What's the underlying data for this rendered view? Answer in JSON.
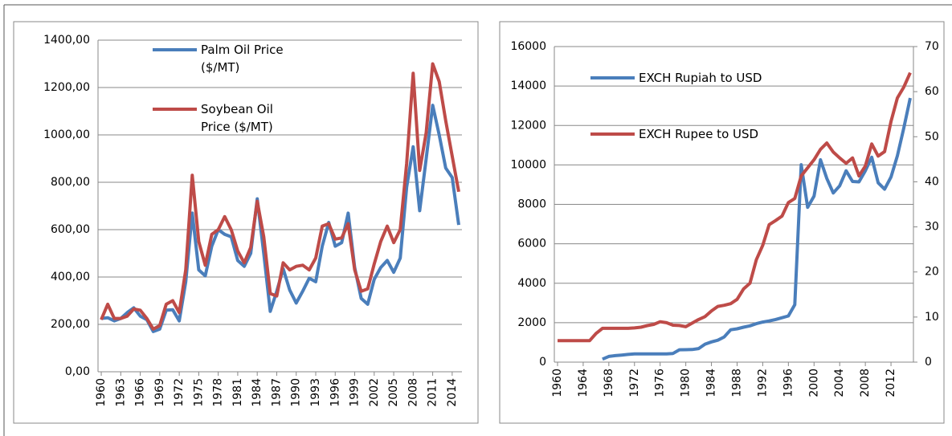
{
  "chart_data": [
    {
      "type": "line",
      "x": [
        1960,
        1961,
        1962,
        1963,
        1964,
        1965,
        1966,
        1967,
        1968,
        1969,
        1970,
        1971,
        1972,
        1973,
        1974,
        1975,
        1976,
        1977,
        1978,
        1979,
        1980,
        1981,
        1982,
        1983,
        1984,
        1985,
        1986,
        1987,
        1988,
        1989,
        1990,
        1991,
        1992,
        1993,
        1994,
        1995,
        1996,
        1997,
        1998,
        1999,
        2000,
        2001,
        2002,
        2003,
        2004,
        2005,
        2006,
        2007,
        2008,
        2009,
        2010,
        2011,
        2012,
        2013,
        2014,
        2015
      ],
      "xlim": [
        1959.5,
        2015.5
      ],
      "xticks": [
        1960,
        1963,
        1966,
        1969,
        1972,
        1975,
        1978,
        1981,
        1984,
        1987,
        1990,
        1993,
        1996,
        1999,
        2002,
        2005,
        2008,
        2011,
        2014
      ],
      "ylim": [
        0,
        1400
      ],
      "yticks": [
        {
          "value": 0,
          "label": "0,00"
        },
        {
          "value": 200,
          "label": "200,00"
        },
        {
          "value": 400,
          "label": "400,00"
        },
        {
          "value": 600,
          "label": "600,00"
        },
        {
          "value": 800,
          "label": "800,00"
        },
        {
          "value": 1000,
          "label": "1000,00"
        },
        {
          "value": 1200,
          "label": "1200,00"
        },
        {
          "value": 1400,
          "label": "1400,00"
        }
      ],
      "grid": true,
      "legend": "top-left",
      "series": [
        {
          "name": "Palm Oil Price ($/MT)",
          "color": "#4a7ebb",
          "values": [
            225,
            228,
            215,
            225,
            250,
            270,
            235,
            220,
            170,
            180,
            260,
            262,
            215,
            380,
            670,
            430,
            405,
            530,
            600,
            580,
            570,
            470,
            445,
            500,
            730,
            500,
            255,
            340,
            435,
            345,
            290,
            340,
            395,
            380,
            530,
            630,
            530,
            545,
            670,
            440,
            310,
            285,
            390,
            440,
            470,
            420,
            480,
            780,
            950,
            680,
            900,
            1125,
            1000,
            860,
            820,
            620
          ]
        },
        {
          "name": "Soybean Oil Price ($/MT)",
          "color": "#be4b48",
          "values": [
            220,
            285,
            225,
            225,
            235,
            265,
            260,
            225,
            180,
            195,
            285,
            300,
            250,
            430,
            830,
            550,
            450,
            580,
            600,
            655,
            600,
            510,
            460,
            525,
            720,
            570,
            330,
            320,
            460,
            430,
            445,
            450,
            430,
            480,
            615,
            625,
            560,
            565,
            625,
            430,
            340,
            350,
            455,
            550,
            615,
            545,
            600,
            880,
            1260,
            850,
            1010,
            1300,
            1225,
            1060,
            910,
            760
          ]
        }
      ]
    },
    {
      "type": "line",
      "x": [
        1960,
        1961,
        1962,
        1963,
        1964,
        1965,
        1966,
        1967,
        1968,
        1969,
        1970,
        1971,
        1972,
        1973,
        1974,
        1975,
        1976,
        1977,
        1978,
        1979,
        1980,
        1981,
        1982,
        1983,
        1984,
        1985,
        1986,
        1987,
        1988,
        1989,
        1990,
        1991,
        1992,
        1993,
        1994,
        1995,
        1996,
        1997,
        1998,
        1999,
        2000,
        2001,
        2002,
        2003,
        2004,
        2005,
        2006,
        2007,
        2008,
        2009,
        2010,
        2011,
        2012,
        2013,
        2014,
        2015
      ],
      "xlim": [
        1959.5,
        2015.5
      ],
      "xticks": [
        1960,
        1964,
        1968,
        1972,
        1976,
        1980,
        1984,
        1988,
        1992,
        1996,
        2000,
        2004,
        2008,
        2012
      ],
      "ylim": [
        0,
        16000
      ],
      "yticks": [
        0,
        2000,
        4000,
        6000,
        8000,
        10000,
        12000,
        14000,
        16000
      ],
      "y2lim": [
        0,
        70
      ],
      "y2ticks": [
        0,
        10,
        20,
        30,
        40,
        50,
        60,
        70
      ],
      "grid": true,
      "legend": "top-left",
      "series": [
        {
          "name": "EXCH Rupiah to USD",
          "color": "#4a7ebb",
          "values": [
            null,
            null,
            null,
            null,
            null,
            null,
            null,
            150,
            290,
            330,
            360,
            390,
            415,
            415,
            415,
            415,
            415,
            415,
            440,
            625,
            630,
            640,
            690,
            910,
            1025,
            1110,
            1280,
            1640,
            1690,
            1770,
            1840,
            1950,
            2030,
            2090,
            2160,
            2250,
            2340,
            2910,
            10010,
            7850,
            8420,
            10260,
            9310,
            8580,
            8940,
            9700,
            9160,
            9140,
            9700,
            10390,
            9090,
            8770,
            9390,
            10460,
            11870,
            13390
          ]
        },
        {
          "name": "EXCH Rupee to USD",
          "color": "#be4b48",
          "axis": "y2",
          "values": [
            4.76,
            4.76,
            4.76,
            4.76,
            4.76,
            4.76,
            6.36,
            7.5,
            7.5,
            7.5,
            7.5,
            7.49,
            7.59,
            7.74,
            8.1,
            8.38,
            8.96,
            8.74,
            8.19,
            8.13,
            7.86,
            8.66,
            9.46,
            10.1,
            11.36,
            12.37,
            12.61,
            12.96,
            13.92,
            16.23,
            17.5,
            22.7,
            25.9,
            30.5,
            31.4,
            32.4,
            35.4,
            36.3,
            41.3,
            43.1,
            44.9,
            47.2,
            48.6,
            46.6,
            45.3,
            44.1,
            45.3,
            41.3,
            43.5,
            48.4,
            45.7,
            46.7,
            53.4,
            58.6,
            61.0,
            64.2
          ]
        }
      ]
    }
  ]
}
